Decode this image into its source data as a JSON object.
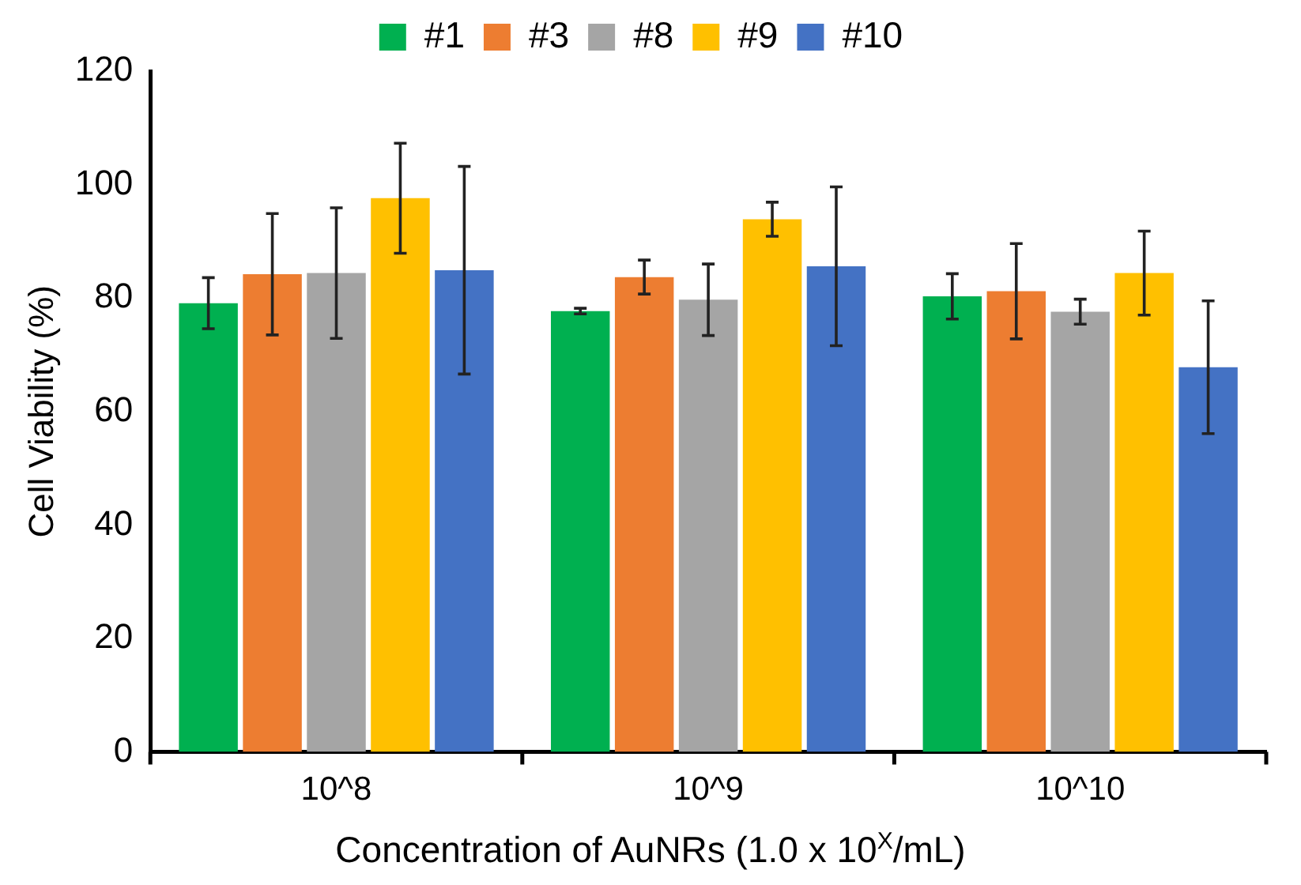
{
  "chart_data": {
    "type": "bar",
    "xlabel": "Concentration of AuNRs (1.0 x 10$^{X}$/mL)",
    "ylabel": "Cell Viability (%)",
    "categories": [
      "10^8",
      "10^9",
      "10^10"
    ],
    "series": [
      {
        "name": "#1",
        "color": "#00b050",
        "values": [
          79.1,
          77.7,
          80.3
        ],
        "errors": [
          4.5,
          0.5,
          4
        ]
      },
      {
        "name": "#3",
        "color": "#ed7d31",
        "values": [
          84.2,
          83.7,
          81.2
        ],
        "errors": [
          10.7,
          3,
          8.4
        ]
      },
      {
        "name": "#8",
        "color": "#a5a5a5",
        "values": [
          84.4,
          79.7,
          77.6
        ],
        "errors": [
          11.5,
          6.3,
          2.2
        ]
      },
      {
        "name": "#9",
        "color": "#ffc000",
        "values": [
          97.6,
          93.9,
          84.4
        ],
        "errors": [
          9.7,
          3,
          7.4
        ]
      },
      {
        "name": "#10",
        "color": "#4472c4",
        "values": [
          84.9,
          85.6,
          67.8
        ],
        "errors": [
          18.3,
          14,
          11.7
        ]
      }
    ],
    "ylim": [
      0,
      120
    ],
    "yticks": [
      0,
      20,
      40,
      60,
      80,
      100,
      120
    ],
    "grid": false,
    "legend": "top"
  }
}
